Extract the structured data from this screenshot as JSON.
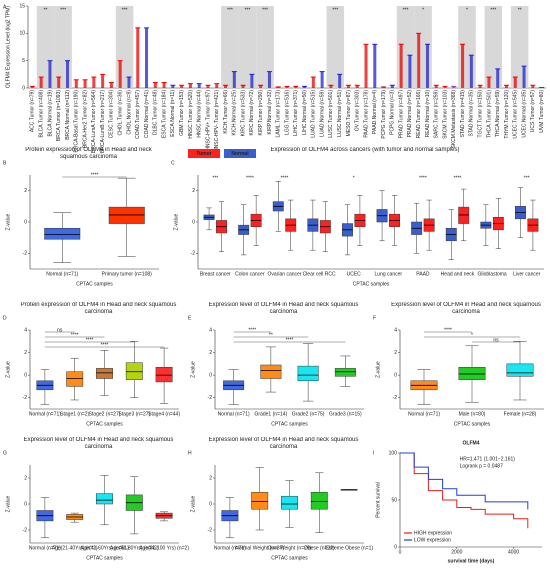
{
  "chart_data": [
    {
      "type": "bar",
      "label": "A",
      "ylabel": "OLFM4 Expression Level (log2 TPM)",
      "ylim": [
        0,
        15
      ],
      "yticks": [
        0,
        5,
        10,
        15
      ],
      "categories": [
        "ACC.Tumor (n=79)",
        "BLCA.Tumor (n=408)",
        "BLCA.Normal (n=19)",
        "BRCA.Tumor (n=1093)",
        "BRCA.Normal (n=112)",
        "BRCA-Basal.Tumor (n=190)",
        "BRCA-Her2.Tumor (n=82)",
        "BRCA-LumA.Tumor (n=564)",
        "BRCA-LumB.Tumor (n=217)",
        "CESC.Tumor (n=304)",
        "CHOL.Tumor (n=36)",
        "CHOL.Normal (n=9)",
        "COAD.Tumor (n=457)",
        "COAD.Normal (n=41)",
        "DLBC.Tumor (n=48)",
        "ESCA.Tumor (n=184)",
        "ESCA.Normal (n=11)",
        "GBM.Tumor (n=153)",
        "HNSC.Tumor (n=520)",
        "HNSC.Normal (n=44)",
        "HNSC-HPV+.Tumor (n=97)",
        "HNSC-HPV-.Tumor (n=421)",
        "KICH.Tumor (n=66)",
        "KICH.Normal (n=25)",
        "KIRC.Tumor (n=533)",
        "KIRC.Normal (n=72)",
        "KIRP.Tumor (n=290)",
        "KIRP.Normal (n=32)",
        "LAML.Tumor (n=173)",
        "LGG.Tumor (n=516)",
        "LIHC.Tumor (n=371)",
        "LIHC.Normal (n=50)",
        "LUAD.Tumor (n=515)",
        "LUAD.Normal (n=59)",
        "LUSC.Tumor (n=501)",
        "LUSC.Normal (n=51)",
        "MESO.Tumor (n=87)",
        "OV.Tumor (n=303)",
        "PAAD.Tumor (n=178)",
        "PAAD.Normal (n=4)",
        "PCPG.Tumor (n=179)",
        "PCPG.Normal (n=3)",
        "PRAD.Tumor (n=497)",
        "PRAD.Normal (n=52)",
        "READ.Tumor (n=166)",
        "READ.Normal (n=10)",
        "SARC.Tumor (n=259)",
        "SKCM.Tumor (n=103)",
        "SKCM.Metastasis (n=368)",
        "STAD.Tumor (n=415)",
        "STAD.Normal (n=35)",
        "TGCT.Tumor (n=150)",
        "THCA.Tumor (n=501)",
        "THCA.Normal (n=59)",
        "THYM.Tumor (n=120)",
        "UCEC.Tumor (n=545)",
        "UCEC.Normal (n=35)",
        "UCS.Tumor (n=57)",
        "UVM.Tumor (n=80)"
      ],
      "values": [
        0.3,
        2,
        5,
        2,
        5,
        1.5,
        1.5,
        2,
        2.5,
        1,
        5,
        2,
        11,
        11,
        1,
        1,
        0.5,
        0.5,
        0.8,
        0.8,
        0.5,
        0.8,
        0.5,
        3,
        0.5,
        2.5,
        0.5,
        3,
        0.2,
        0.3,
        0.3,
        0.3,
        2,
        3,
        0.5,
        2.5,
        0.5,
        0.5,
        8,
        8,
        0.2,
        0.5,
        8,
        6,
        10,
        8,
        0.5,
        0.3,
        0.3,
        8,
        6,
        0.5,
        2,
        3.5,
        0.5,
        2,
        4,
        0.5,
        0.1
      ],
      "colors": [
        "#e00",
        "#e00",
        "#22c",
        "#e00",
        "#22c",
        "#e00",
        "#e00",
        "#e00",
        "#e00",
        "#e00",
        "#e00",
        "#22c",
        "#e00",
        "#22c",
        "#e00",
        "#e00",
        "#22c",
        "#e00",
        "#e00",
        "#22c",
        "#e00",
        "#e00",
        "#e00",
        "#22c",
        "#e00",
        "#22c",
        "#e00",
        "#22c",
        "#e00",
        "#e00",
        "#e00",
        "#22c",
        "#e00",
        "#22c",
        "#e00",
        "#22c",
        "#e00",
        "#e00",
        "#e00",
        "#22c",
        "#e00",
        "#22c",
        "#e00",
        "#22c",
        "#e00",
        "#22c",
        "#e00",
        "#e00",
        "#93c",
        "#e00",
        "#22c",
        "#e00",
        "#e00",
        "#22c",
        "#e00",
        "#e00",
        "#22c",
        "#e00",
        "#e00"
      ],
      "annotations": [
        {
          "pair": [
            1,
            2
          ],
          "label": "**"
        },
        {
          "pair": [
            3,
            4
          ],
          "label": "***"
        },
        {
          "pair": [
            10,
            11
          ],
          "label": "***"
        },
        {
          "pair": [
            22,
            23
          ],
          "label": "***"
        },
        {
          "pair": [
            24,
            25
          ],
          "label": "***"
        },
        {
          "pair": [
            26,
            27
          ],
          "label": "***"
        },
        {
          "pair": [
            34,
            35
          ],
          "label": "***"
        },
        {
          "pair": [
            42,
            43
          ],
          "label": "***"
        },
        {
          "pair": [
            44,
            45
          ],
          "label": "*"
        },
        {
          "pair": [
            49,
            50
          ],
          "label": "*"
        },
        {
          "pair": [
            52,
            53
          ],
          "label": "***"
        },
        {
          "pair": [
            55,
            56
          ],
          "label": "**"
        }
      ]
    },
    {
      "type": "box",
      "label": "B",
      "title": "Protein expression of OLFM4 in Head and neck squamous carcinoma",
      "xlabel": "CPTAC samples",
      "ylabel": "Z-value",
      "ylim": [
        -3,
        3
      ],
      "yticks": [
        -2,
        0,
        2
      ],
      "categories": [
        "Normal (n=71)",
        "Primary tumor (n=108)"
      ],
      "colors": [
        "#4169e1",
        "#ff3300"
      ],
      "boxes": [
        [
          -2.6,
          -1.1,
          -0.8,
          -0.4,
          0.6
        ],
        [
          -2.2,
          -0.1,
          0.45,
          0.95,
          2.8
        ]
      ],
      "annotations": [
        {
          "pair": [
            0,
            1
          ],
          "label": "****"
        }
      ]
    },
    {
      "type": "box",
      "label": "C",
      "title": "Expression of OLFM4 across cancers (with tumor and normal samples)",
      "xlabel": "CPTAC samples",
      "ylabel": "Z-value",
      "ylim": [
        -3,
        3
      ],
      "yticks": [
        -2,
        0,
        2
      ],
      "categories": [
        "Breast cancer",
        "Colon cancer",
        "Ovarian cancer",
        "Clear cell RCC",
        "UCEC",
        "Lung cancer",
        "PAAD",
        "Head and neck",
        "Glioblastoma",
        "Liver cancer"
      ],
      "series": [
        {
          "name": "Tumor",
          "color": "#ff2020",
          "boxes": [
            [
              -1.9,
              -0.7,
              -0.3,
              0.1,
              1.3
            ],
            [
              -1.5,
              -0.3,
              0.1,
              0.5,
              1.7
            ],
            [
              -1.8,
              -0.6,
              -0.2,
              0.2,
              1.4
            ],
            [
              -1.9,
              -0.7,
              -0.3,
              0.1,
              1.3
            ],
            [
              -1.5,
              -0.3,
              0.1,
              0.5,
              1.7
            ],
            [
              -1.5,
              -0.3,
              0.1,
              0.5,
              1.7
            ],
            [
              -1.8,
              -0.6,
              -0.2,
              0.2,
              1.4
            ],
            [
              -1.2,
              -0.1,
              0.45,
              0.95,
              2.1
            ],
            [
              -1.7,
              -0.5,
              -0.1,
              0.3,
              1.5
            ],
            [
              -1.8,
              -0.6,
              -0.2,
              0.2,
              1.4
            ]
          ]
        },
        {
          "name": "Normal",
          "color": "#3a5fcd",
          "boxes": [
            [
              -0.5,
              0.15,
              0.3,
              0.45,
              0.9
            ],
            [
              -2.1,
              -0.8,
              -0.5,
              -0.2,
              1.1
            ],
            [
              -0.6,
              0.7,
              1,
              1.3,
              2.6
            ],
            [
              -1.8,
              -0.6,
              -0.2,
              0.2,
              1.4
            ],
            [
              -2.1,
              -0.9,
              -0.5,
              -0.1,
              1.1
            ],
            [
              -1.2,
              0,
              0.4,
              0.8,
              2
            ],
            [
              -2,
              -0.8,
              -0.4,
              0,
              1.2
            ],
            [
              -2.4,
              -1.2,
              -0.8,
              -0.4,
              0.8
            ],
            [
              -1.5,
              -0.4,
              -0.2,
              0,
              1.1
            ],
            [
              -1,
              0.2,
              0.6,
              1,
              2.2
            ]
          ]
        }
      ],
      "annotations": [
        {
          "index": 0,
          "label": "***"
        },
        {
          "index": 1,
          "label": "****"
        },
        {
          "index": 2,
          "label": "****"
        },
        {
          "index": 4,
          "label": "*"
        },
        {
          "index": 6,
          "label": "****"
        },
        {
          "index": 7,
          "label": "****"
        },
        {
          "index": 9,
          "label": "***"
        }
      ]
    },
    {
      "type": "box",
      "label": "D",
      "title": "Protein expression of OLFM4 in Head and neck squamous carcinoma",
      "xlabel": "CPTAC samples",
      "ylabel": "Z-value",
      "ylim": [
        -3,
        4
      ],
      "yticks": [
        -2,
        0,
        2,
        4
      ],
      "categories": [
        "Normal (n=71)",
        "Stage1 (n=2)",
        "Stage2 (n=27)",
        "Stage3 (n=27)",
        "Stage4 (n=44)"
      ],
      "colors": [
        "#4169e1",
        "#ff8c1a",
        "#c8793a",
        "#b5d40f",
        "#ff3030"
      ],
      "boxes": [
        [
          -2.6,
          -1.3,
          -0.9,
          -0.5,
          0.5
        ],
        [
          -2.2,
          -1,
          -0.3,
          0.3,
          1.5
        ],
        [
          -1.8,
          -0.3,
          0.2,
          0.6,
          2.2
        ],
        [
          -2,
          -0.4,
          0.3,
          1.1,
          3
        ],
        [
          -2.5,
          -0.6,
          0,
          0.7,
          2.4
        ]
      ],
      "annotations": [
        {
          "pair": [
            0,
            1
          ],
          "label": "ns"
        },
        {
          "pair": [
            0,
            2
          ],
          "label": "****"
        },
        {
          "pair": [
            0,
            3
          ],
          "label": "****"
        },
        {
          "pair": [
            0,
            4
          ],
          "label": "****"
        }
      ]
    },
    {
      "type": "box",
      "label": "E",
      "title": "Expression level of OLFM4 in Head and neck squamous carcinoma",
      "xlabel": "CPTAC samples",
      "ylabel": "Z-value",
      "ylim": [
        -3,
        4
      ],
      "yticks": [
        -2,
        0,
        2,
        4
      ],
      "categories": [
        "Normal (n=71)",
        "Grade1 (n=14)",
        "Grade2 (n=75)",
        "Grade3 (n=15)"
      ],
      "colors": [
        "#4169e1",
        "#ff8c1a",
        "#19e6f0",
        "#22cc22"
      ],
      "boxes": [
        [
          -2.6,
          -1.3,
          -0.9,
          -0.5,
          0.5
        ],
        [
          -1.5,
          -0.3,
          0.4,
          0.9,
          2.5
        ],
        [
          -2.3,
          -0.5,
          0,
          0.8,
          2.8
        ],
        [
          -1,
          -0.1,
          0.3,
          0.6,
          1.7
        ]
      ],
      "annotations": [
        {
          "pair": [
            0,
            1
          ],
          "label": "****"
        },
        {
          "pair": [
            0,
            2
          ],
          "label": "**"
        },
        {
          "pair": [
            0,
            3
          ],
          "label": "****"
        }
      ]
    },
    {
      "type": "box",
      "label": "F",
      "title": "Expression level of OLFM4 in Head and neck squamous carcinoma",
      "xlabel": "CPTAC samples",
      "ylabel": "Z-value",
      "ylim": [
        -3,
        4
      ],
      "yticks": [
        -2,
        0,
        2,
        4
      ],
      "categories": [
        "Normal (n=71)",
        "Male (n=80)",
        "Female (n=28)"
      ],
      "colors": [
        "#ff8c1a",
        "#22cc22",
        "#19e6f0"
      ],
      "boxes": [
        [
          -2.6,
          -1.3,
          -0.9,
          -0.5,
          0.5
        ],
        [
          -2.4,
          -0.4,
          0.1,
          0.7,
          2.6
        ],
        [
          -2.2,
          -0.1,
          0.2,
          1,
          3
        ]
      ],
      "annotations": [
        {
          "pair": [
            0,
            1
          ],
          "label": "****"
        },
        {
          "pair": [
            0,
            2
          ],
          "label": "*"
        },
        {
          "pair": [
            1,
            2
          ],
          "label": "ns"
        }
      ]
    },
    {
      "type": "box",
      "label": "G",
      "title": "Expression level of OLFM4 in Head and neck squamous carcinoma",
      "xlabel": "CPTAC samples",
      "ylabel": "Z-value",
      "ylim": [
        -3,
        3
      ],
      "yticks": [
        -2,
        0,
        2
      ],
      "categories": [
        "Normal (n=71)",
        "Age(21-40Yrs) (n=2)",
        "Age(41-60Yrs) (n=61)",
        "Age(61-80Yrs) (n=42)",
        "Age(81-100 Yrs) (n=2)"
      ],
      "colors": [
        "#4169e1",
        "#ff8c1a",
        "#19e6f0",
        "#22cc22",
        "#ff3030"
      ],
      "boxes": [
        [
          -2.6,
          -1.3,
          -0.9,
          -0.5,
          0.5
        ],
        [
          -1.4,
          -1.2,
          -1,
          -0.8,
          -0.7
        ],
        [
          -1.6,
          0,
          0.3,
          0.8,
          2.2
        ],
        [
          -2.3,
          -0.5,
          0.1,
          0.7,
          2.1
        ],
        [
          -1.3,
          -1.1,
          -0.9,
          -0.7,
          -0.6
        ]
      ]
    },
    {
      "type": "box",
      "label": "H",
      "title": "Expression level of OLFM4 in Head and neck squamous carcinoma",
      "xlabel": "CPTAC samples",
      "ylabel": "Z-value",
      "ylim": [
        -3,
        3
      ],
      "yticks": [
        -2,
        0,
        2
      ],
      "categories": [
        "Normal (n=71)",
        "Normal Weight (n=37)",
        "Over Weight (n=29)",
        "Obese (n=22)",
        "Extreme Obese (n=1)"
      ],
      "colors": [
        "#4169e1",
        "#ff8c1a",
        "#19e6f0",
        "#22cc22",
        "#000000"
      ],
      "boxes": [
        [
          -2.6,
          -1.3,
          -0.9,
          -0.5,
          0.5
        ],
        [
          -2,
          -0.4,
          0.2,
          0.9,
          2.8
        ],
        [
          -1.8,
          -0.4,
          0,
          0.6,
          1.8
        ],
        [
          -2.2,
          -0.4,
          0.2,
          0.9,
          2.4
        ],
        [
          1.1,
          1.1,
          1.1,
          1.1,
          1.1
        ]
      ]
    },
    {
      "type": "line",
      "label": "I",
      "title": "OLFM4",
      "xlabel": "survival time (days)",
      "ylabel": "Percent survival",
      "xlim": [
        0,
        5000
      ],
      "xticks": [
        0,
        2000,
        4000
      ],
      "ylim": [
        0,
        100
      ],
      "yticks": [
        0,
        50,
        100
      ],
      "annotations": [
        "HR=1.471 (1.001−2.161)",
        "Logrank p = 0.0487"
      ],
      "series": [
        {
          "name": "HIGH expression",
          "color": "#e02020",
          "x": [
            0,
            500,
            1000,
            1500,
            2000,
            2500,
            3000,
            4000,
            4500
          ],
          "values": [
            100,
            78,
            60,
            50,
            42,
            40,
            35,
            30,
            20
          ]
        },
        {
          "name": "LOW expression",
          "color": "#2040d0",
          "x": [
            0,
            500,
            1000,
            1500,
            2000,
            3000,
            4000,
            4500
          ],
          "values": [
            100,
            85,
            72,
            62,
            55,
            48,
            48,
            40
          ]
        }
      ]
    }
  ]
}
